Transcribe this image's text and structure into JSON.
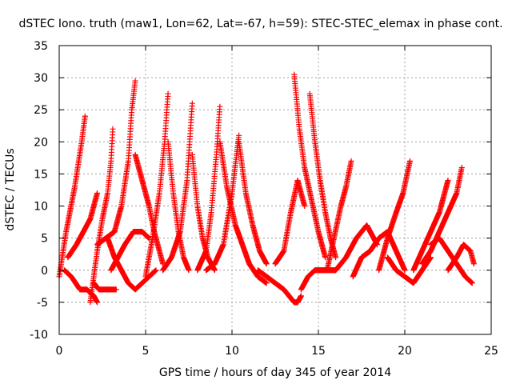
{
  "chart_data": {
    "type": "scatter",
    "title": "dSTEC Iono. truth (maw1, Lon=62, Lat=-67, h=59): STEC-STEC_elemax in phase cont.",
    "xlabel": "GPS time / hours of day 345 of year 2014",
    "ylabel": "dSTEC  / TECUs",
    "xlim": [
      0,
      25
    ],
    "ylim": [
      -10,
      35
    ],
    "xticks": [
      0,
      5,
      10,
      15,
      20,
      25
    ],
    "yticks": [
      -10,
      -5,
      0,
      5,
      10,
      15,
      20,
      25,
      30,
      35
    ],
    "grid": true,
    "marker": "+",
    "color": "#ff0000",
    "arcs": [
      {
        "t": [
          0.0,
          0.4,
          0.9,
          1.3,
          1.5
        ],
        "v": [
          -1,
          6,
          13,
          20,
          24
        ]
      },
      {
        "t": [
          0.3,
          0.7,
          1.2,
          1.6,
          2.0,
          2.2
        ],
        "v": [
          0,
          -1,
          -3,
          -3,
          -4,
          -5
        ]
      },
      {
        "t": [
          0.5,
          1.0,
          1.4,
          1.8,
          2.2
        ],
        "v": [
          2,
          4,
          6,
          8,
          12
        ]
      },
      {
        "t": [
          1.8,
          2.2,
          2.5,
          2.8,
          3.0,
          3.1
        ],
        "v": [
          -5,
          3,
          8,
          12,
          17,
          22
        ]
      },
      {
        "t": [
          2.0,
          2.3,
          2.6,
          3.0,
          3.3
        ],
        "v": [
          -2,
          -3,
          -3,
          -3,
          -3
        ]
      },
      {
        "t": [
          2.2,
          2.7,
          3.2,
          3.6,
          4.0,
          4.2,
          4.4
        ],
        "v": [
          4,
          5,
          6,
          10,
          17,
          25,
          29.5
        ]
      },
      {
        "t": [
          3.0,
          3.4,
          3.8,
          4.3,
          4.8,
          5.2
        ],
        "v": [
          0,
          2,
          4,
          6,
          6,
          5
        ]
      },
      {
        "t": [
          2.8,
          3.2,
          3.6,
          4.0,
          4.4,
          4.8,
          5.2,
          5.6
        ],
        "v": [
          5,
          2,
          0,
          -2,
          -3,
          -2,
          -1,
          0
        ]
      },
      {
        "t": [
          4.4,
          4.8,
          5.2,
          5.5,
          5.8,
          6.0
        ],
        "v": [
          18,
          14,
          10,
          6,
          3,
          1
        ]
      },
      {
        "t": [
          5.0,
          5.4,
          5.8,
          6.1,
          6.3
        ],
        "v": [
          -1,
          5,
          12,
          20,
          27.5
        ]
      },
      {
        "t": [
          6.3,
          6.6,
          6.9,
          7.2,
          7.5
        ],
        "v": [
          20,
          12,
          6,
          2,
          0
        ]
      },
      {
        "t": [
          6.0,
          6.5,
          7.0,
          7.4,
          7.7
        ],
        "v": [
          0,
          2,
          6,
          14,
          26
        ]
      },
      {
        "t": [
          7.7,
          8.0,
          8.3,
          8.6,
          9.0
        ],
        "v": [
          18,
          10,
          5,
          2,
          0
        ]
      },
      {
        "t": [
          8.0,
          8.5,
          8.8,
          9.1,
          9.3
        ],
        "v": [
          0,
          3,
          9,
          18,
          25.5
        ]
      },
      {
        "t": [
          9.3,
          9.7,
          10.2,
          10.6,
          11.0,
          11.5,
          12.0
        ],
        "v": [
          20,
          13,
          7,
          4,
          1,
          -1,
          -2
        ]
      },
      {
        "t": [
          8.5,
          9.0,
          9.5,
          10.0,
          10.4
        ],
        "v": [
          0,
          1,
          4,
          12,
          21
        ]
      },
      {
        "t": [
          10.4,
          10.8,
          11.2,
          11.6,
          12.0
        ],
        "v": [
          20,
          12,
          7,
          3,
          1
        ]
      },
      {
        "t": [
          11.5,
          12.0,
          12.5,
          13.0,
          13.3,
          13.6,
          13.8,
          14.0
        ],
        "v": [
          0,
          -1,
          -2,
          -3,
          -4,
          -5,
          -5,
          -4
        ]
      },
      {
        "t": [
          14.0,
          14.4,
          14.8,
          15.2,
          15.5,
          16.0
        ],
        "v": [
          -3,
          -1,
          0,
          0,
          0,
          0
        ]
      },
      {
        "t": [
          12.5,
          13.0,
          13.4,
          13.8,
          14.2
        ],
        "v": [
          1,
          3,
          9,
          14,
          10
        ]
      },
      {
        "t": [
          13.6,
          13.9,
          14.2,
          14.6,
          15.0,
          15.4
        ],
        "v": [
          30.5,
          22,
          16,
          11,
          6,
          2
        ]
      },
      {
        "t": [
          14.5,
          14.8,
          15.1,
          15.4,
          15.7,
          16.0
        ],
        "v": [
          27.5,
          20,
          14,
          9,
          5,
          2
        ]
      },
      {
        "t": [
          15.5,
          15.9,
          16.3,
          16.6,
          16.9
        ],
        "v": [
          0,
          5,
          10,
          13,
          17
        ]
      },
      {
        "t": [
          16.0,
          16.6,
          17.2,
          17.8,
          18.4
        ],
        "v": [
          0,
          2,
          5,
          7,
          4
        ]
      },
      {
        "t": [
          17.0,
          17.5,
          18.0,
          18.5,
          19.0,
          19.5,
          20.0
        ],
        "v": [
          -1,
          2,
          3,
          5,
          6,
          3,
          0
        ]
      },
      {
        "t": [
          18.5,
          19.0,
          19.5,
          19.9,
          20.3
        ],
        "v": [
          0,
          5,
          9,
          12,
          17
        ]
      },
      {
        "t": [
          19.0,
          19.5,
          20.0,
          20.5,
          21.0,
          21.5
        ],
        "v": [
          2,
          0,
          -1,
          -2,
          0,
          2
        ]
      },
      {
        "t": [
          20.5,
          21.0,
          21.5,
          22.0,
          22.5
        ],
        "v": [
          0,
          3,
          6,
          9,
          14
        ]
      },
      {
        "t": [
          21.0,
          21.5,
          22.0,
          22.5,
          23.0,
          23.3
        ],
        "v": [
          1,
          3,
          6,
          9,
          12,
          16
        ]
      },
      {
        "t": [
          21.5,
          22.0,
          22.5,
          23.0,
          23.5,
          23.9
        ],
        "v": [
          4,
          5,
          3,
          1,
          -1,
          -2
        ]
      },
      {
        "t": [
          22.5,
          23.0,
          23.4,
          23.8,
          24.0
        ],
        "v": [
          0,
          2,
          4,
          3,
          1
        ]
      }
    ]
  }
}
